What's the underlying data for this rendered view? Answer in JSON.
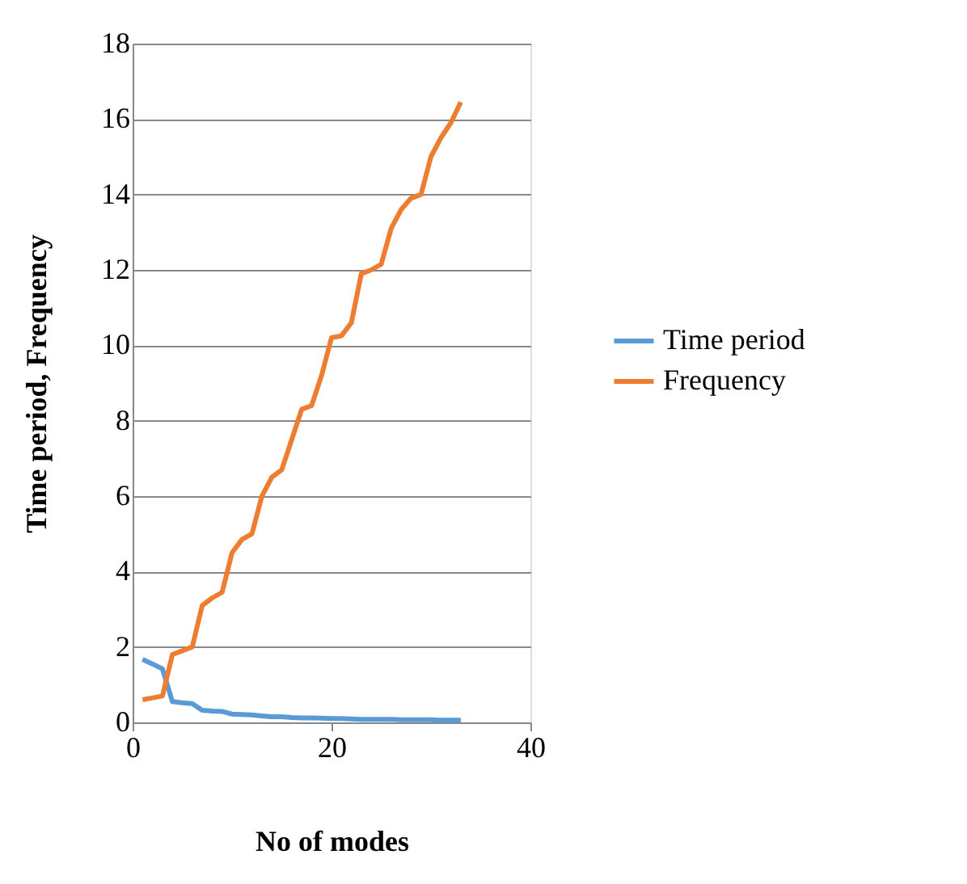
{
  "chart_data": {
    "type": "line",
    "xlabel": "No of modes",
    "ylabel": "Time period, Frequency",
    "x": [
      1,
      2,
      3,
      4,
      5,
      6,
      7,
      8,
      9,
      10,
      11,
      12,
      13,
      14,
      15,
      16,
      17,
      18,
      19,
      20,
      21,
      22,
      23,
      24,
      25,
      26,
      27,
      28,
      29,
      30,
      31,
      32,
      33
    ],
    "series": [
      {
        "name": "Time period",
        "color": "#5b9bd5",
        "values": [
          1.67,
          1.55,
          1.42,
          0.55,
          0.52,
          0.5,
          0.32,
          0.3,
          0.29,
          0.22,
          0.21,
          0.2,
          0.17,
          0.15,
          0.15,
          0.13,
          0.12,
          0.12,
          0.11,
          0.1,
          0.1,
          0.09,
          0.08,
          0.08,
          0.08,
          0.08,
          0.07,
          0.07,
          0.07,
          0.07,
          0.06,
          0.06,
          0.06
        ]
      },
      {
        "name": "Frequency",
        "color": "#ed7d31",
        "values": [
          0.6,
          0.65,
          0.7,
          1.8,
          1.9,
          2.0,
          3.1,
          3.3,
          3.45,
          4.5,
          4.85,
          5.0,
          6.0,
          6.5,
          6.7,
          7.5,
          8.3,
          8.4,
          9.2,
          10.2,
          10.25,
          10.6,
          11.9,
          12.0,
          12.15,
          13.1,
          13.6,
          13.9,
          14.0,
          15.0,
          15.5,
          15.9,
          16.45
        ]
      }
    ],
    "xlim": [
      0,
      40
    ],
    "xticks": [
      0,
      20,
      40
    ],
    "ylim": [
      0,
      18
    ],
    "yticks": [
      0,
      2,
      4,
      6,
      8,
      10,
      12,
      14,
      16,
      18
    ],
    "grid": "y",
    "legend": "right",
    "marker": "none",
    "line_style": "solid"
  }
}
